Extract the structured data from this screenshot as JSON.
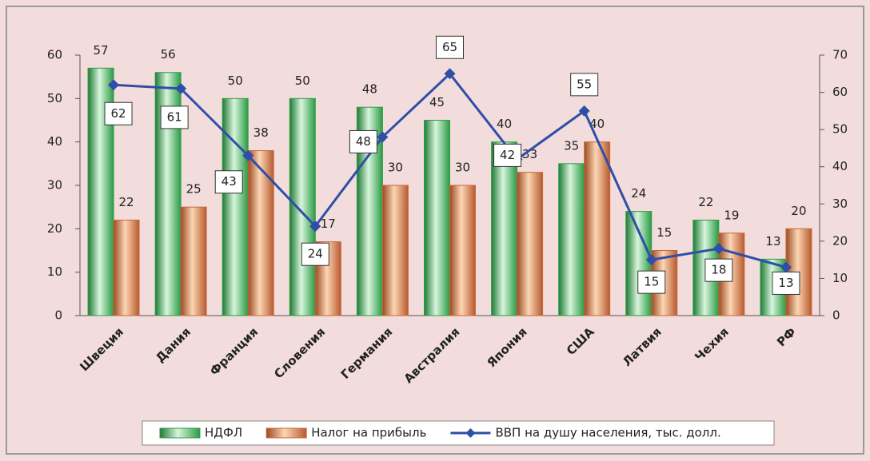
{
  "chart_data": {
    "type": "bar_line",
    "categories": [
      "Швеция",
      "Дания",
      "Франция",
      "Словения",
      "Германия",
      "Австралия",
      "Япония",
      "США",
      "Латвия",
      "Чехия",
      "РФ"
    ],
    "series": [
      {
        "name": "НДФЛ",
        "color": "#2e9e48",
        "values": [
          57,
          56,
          50,
          50,
          48,
          45,
          40,
          35,
          24,
          22,
          13
        ]
      },
      {
        "name": "Налог на прибыль",
        "color": "#c8683a",
        "values": [
          22,
          25,
          38,
          17,
          30,
          30,
          33,
          40,
          15,
          19,
          20
        ]
      },
      {
        "name": "ВВП на душу населения, тыс. долл.",
        "color": "#2f4ea8",
        "axis": "y2",
        "values": [
          62,
          61,
          43,
          24,
          48,
          65,
          42,
          55,
          15,
          18,
          13
        ]
      }
    ],
    "ylim": [
      0,
      60
    ],
    "yticks": [
      0,
      10,
      20,
      30,
      40,
      50,
      60
    ],
    "y2lim": [
      0,
      70
    ],
    "y2ticks": [
      0,
      10,
      20,
      30,
      40,
      50,
      60,
      70
    ],
    "legend": "bottom"
  }
}
